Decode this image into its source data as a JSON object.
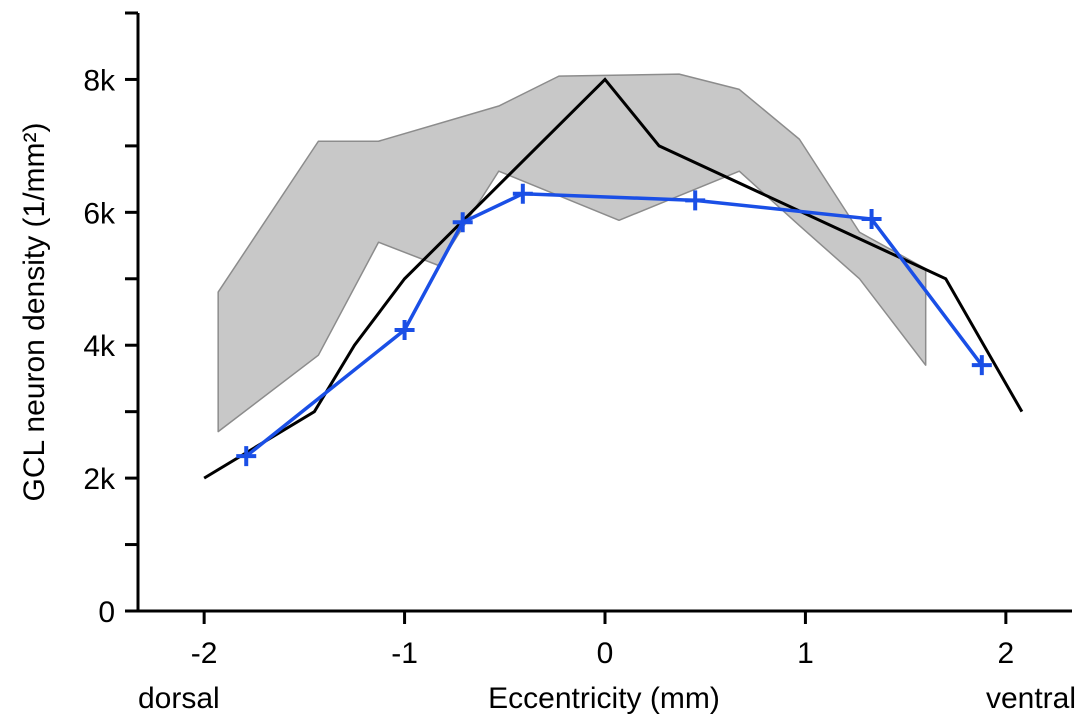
{
  "chart_data": {
    "type": "line",
    "xlabel": "Eccentricity (mm)",
    "ylabel": "GCL neuron density (1/mm²)",
    "x_endpoint_labels": {
      "left": "dorsal",
      "right": "ventral"
    },
    "xlim": [
      -2.33,
      2.33
    ],
    "ylim": [
      0,
      9000
    ],
    "x_ticks": [
      -2,
      -1,
      0,
      1,
      2
    ],
    "x_tick_labels": [
      "-2",
      "-1",
      "0",
      "1",
      "2"
    ],
    "y_ticks": [
      0,
      1000,
      2000,
      3000,
      4000,
      5000,
      6000,
      7000,
      8000,
      9000
    ],
    "y_tick_labels": [
      "0",
      "",
      "2k",
      "",
      "4k",
      "",
      "6k",
      "",
      "8k",
      ""
    ],
    "grid": false,
    "colors": {
      "blue_series": "#1a4fe6",
      "black_series": "#000000",
      "band_fill": "#c8c8c8",
      "band_edge": "#8c8c8c"
    },
    "band": {
      "upper": [
        {
          "x": -1.93,
          "y": 4800
        },
        {
          "x": -1.43,
          "y": 7070
        },
        {
          "x": -1.13,
          "y": 7070
        },
        {
          "x": -0.53,
          "y": 7600
        },
        {
          "x": -0.23,
          "y": 8050
        },
        {
          "x": 0.37,
          "y": 8080
        },
        {
          "x": 0.67,
          "y": 7850
        },
        {
          "x": 0.97,
          "y": 7100
        },
        {
          "x": 1.27,
          "y": 5700
        },
        {
          "x": 1.6,
          "y": 5150
        }
      ],
      "lower": [
        {
          "x": -1.93,
          "y": 2700
        },
        {
          "x": -1.43,
          "y": 3850
        },
        {
          "x": -1.13,
          "y": 5550
        },
        {
          "x": -0.83,
          "y": 5200
        },
        {
          "x": -0.53,
          "y": 6620
        },
        {
          "x": 0.07,
          "y": 5880
        },
        {
          "x": 0.67,
          "y": 6620
        },
        {
          "x": 0.97,
          "y": 5800
        },
        {
          "x": 1.27,
          "y": 5000
        },
        {
          "x": 1.6,
          "y": 3700
        }
      ]
    },
    "series": [
      {
        "color": "#000000",
        "marker": "none",
        "points": [
          {
            "x": -2.0,
            "y": 2000
          },
          {
            "x": -1.45,
            "y": 3000
          },
          {
            "x": -1.25,
            "y": 4000
          },
          {
            "x": -1.0,
            "y": 5000
          },
          {
            "x": 0.0,
            "y": 8000
          },
          {
            "x": 0.27,
            "y": 7000
          },
          {
            "x": 1.7,
            "y": 5000
          },
          {
            "x": 2.08,
            "y": 3000
          }
        ]
      },
      {
        "color": "#1a4fe6",
        "marker": "plus",
        "points": [
          {
            "x": -1.79,
            "y": 2330
          },
          {
            "x": -1.0,
            "y": 4230
          },
          {
            "x": -0.71,
            "y": 5850
          },
          {
            "x": -0.41,
            "y": 6280
          },
          {
            "x": 0.45,
            "y": 6180
          },
          {
            "x": 1.33,
            "y": 5900
          },
          {
            "x": 1.88,
            "y": 3700
          }
        ]
      }
    ]
  }
}
